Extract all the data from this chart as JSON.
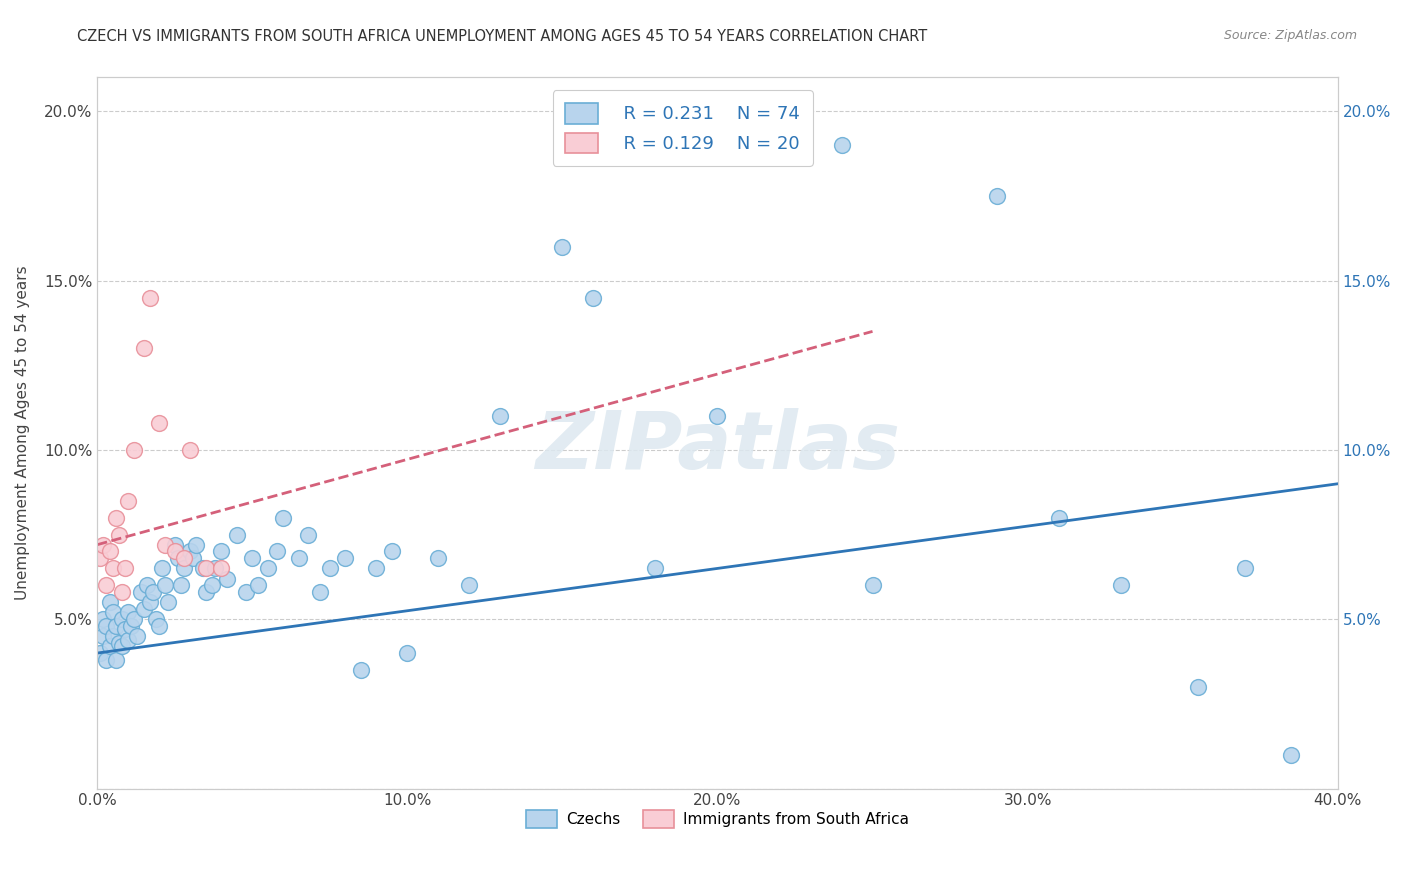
{
  "title": "CZECH VS IMMIGRANTS FROM SOUTH AFRICA UNEMPLOYMENT AMONG AGES 45 TO 54 YEARS CORRELATION CHART",
  "source": "Source: ZipAtlas.com",
  "ylabel": "Unemployment Among Ages 45 to 54 years",
  "xlim": [
    0.0,
    0.4
  ],
  "ylim": [
    0.0,
    0.21
  ],
  "xticks": [
    0.0,
    0.1,
    0.2,
    0.3,
    0.4
  ],
  "xticklabels": [
    "0.0%",
    "10.0%",
    "20.0%",
    "30.0%",
    "40.0%"
  ],
  "yticks": [
    0.0,
    0.05,
    0.1,
    0.15,
    0.2
  ],
  "yticklabels": [
    "",
    "5.0%",
    "10.0%",
    "15.0%",
    "20.0%"
  ],
  "czech_color": "#b8d4ed",
  "czech_edge_color": "#6aaed6",
  "sa_color": "#f9cdd5",
  "sa_edge_color": "#e8909a",
  "czech_line_color": "#2e75b6",
  "sa_line_color": "#d4607a",
  "watermark": "ZIPatlas",
  "legend_r_czech": "R = 0.231",
  "legend_n_czech": "N = 74",
  "legend_r_sa": "R = 0.129",
  "legend_n_sa": "N = 20",
  "background_color": "#ffffff",
  "grid_color": "#cccccc",
  "czech_x": [
    0.001,
    0.002,
    0.002,
    0.003,
    0.003,
    0.004,
    0.004,
    0.005,
    0.005,
    0.006,
    0.006,
    0.007,
    0.008,
    0.008,
    0.009,
    0.01,
    0.01,
    0.011,
    0.012,
    0.013,
    0.014,
    0.015,
    0.016,
    0.017,
    0.018,
    0.019,
    0.02,
    0.021,
    0.022,
    0.023,
    0.025,
    0.026,
    0.027,
    0.028,
    0.03,
    0.031,
    0.032,
    0.034,
    0.035,
    0.037,
    0.038,
    0.04,
    0.042,
    0.045,
    0.048,
    0.05,
    0.052,
    0.055,
    0.058,
    0.06,
    0.065,
    0.068,
    0.072,
    0.075,
    0.08,
    0.085,
    0.09,
    0.095,
    0.1,
    0.11,
    0.12,
    0.13,
    0.15,
    0.16,
    0.18,
    0.2,
    0.24,
    0.25,
    0.29,
    0.31,
    0.33,
    0.355,
    0.37,
    0.385
  ],
  "czech_y": [
    0.04,
    0.045,
    0.05,
    0.038,
    0.048,
    0.042,
    0.055,
    0.045,
    0.052,
    0.038,
    0.048,
    0.043,
    0.05,
    0.042,
    0.047,
    0.052,
    0.044,
    0.048,
    0.05,
    0.045,
    0.058,
    0.053,
    0.06,
    0.055,
    0.058,
    0.05,
    0.048,
    0.065,
    0.06,
    0.055,
    0.072,
    0.068,
    0.06,
    0.065,
    0.07,
    0.068,
    0.072,
    0.065,
    0.058,
    0.06,
    0.065,
    0.07,
    0.062,
    0.075,
    0.058,
    0.068,
    0.06,
    0.065,
    0.07,
    0.08,
    0.068,
    0.075,
    0.058,
    0.065,
    0.068,
    0.035,
    0.065,
    0.07,
    0.04,
    0.068,
    0.06,
    0.11,
    0.16,
    0.145,
    0.065,
    0.11,
    0.19,
    0.06,
    0.175,
    0.08,
    0.06,
    0.03,
    0.065,
    0.01
  ],
  "sa_x": [
    0.001,
    0.002,
    0.003,
    0.004,
    0.005,
    0.006,
    0.007,
    0.008,
    0.009,
    0.01,
    0.012,
    0.015,
    0.017,
    0.02,
    0.022,
    0.025,
    0.028,
    0.03,
    0.035,
    0.04
  ],
  "sa_y": [
    0.068,
    0.072,
    0.06,
    0.07,
    0.065,
    0.08,
    0.075,
    0.058,
    0.065,
    0.085,
    0.1,
    0.13,
    0.145,
    0.108,
    0.072,
    0.07,
    0.068,
    0.1,
    0.065,
    0.065
  ],
  "czech_trend_x": [
    0.0,
    0.4
  ],
  "czech_trend_y": [
    0.04,
    0.09
  ],
  "sa_trend_x": [
    0.0,
    0.25
  ],
  "sa_trend_y": [
    0.072,
    0.135
  ]
}
